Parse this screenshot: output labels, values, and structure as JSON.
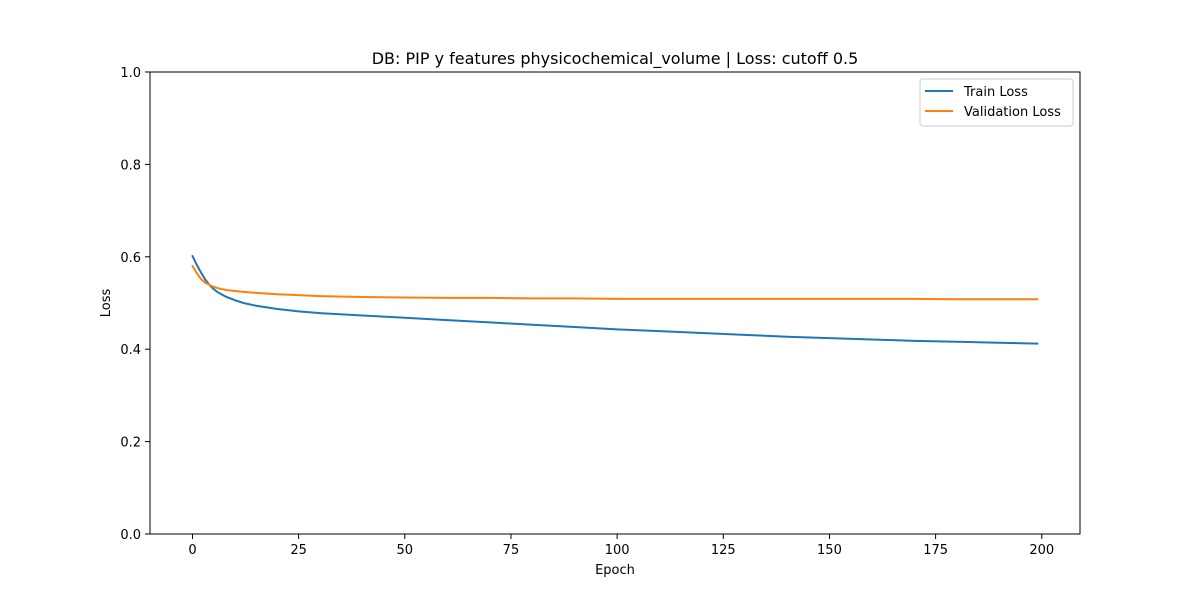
{
  "chart_data": {
    "type": "line",
    "title": "DB: PIP y features physicochemical_volume | Loss: cutoff 0.5",
    "xlabel": "Epoch",
    "ylabel": "Loss",
    "xlim": [
      -10,
      209
    ],
    "ylim": [
      0.0,
      1.0
    ],
    "x_ticks": [
      0,
      25,
      50,
      75,
      100,
      125,
      150,
      175,
      200
    ],
    "y_ticks": [
      0.0,
      0.2,
      0.4,
      0.6,
      0.8,
      1.0
    ],
    "x_tick_labels": [
      "0",
      "25",
      "50",
      "75",
      "100",
      "125",
      "150",
      "175",
      "200"
    ],
    "y_tick_labels": [
      "0.0",
      "0.2",
      "0.4",
      "0.6",
      "0.8",
      "1.0"
    ],
    "grid": false,
    "legend_position": "top-right",
    "x": [
      0,
      1,
      2,
      3,
      4,
      5,
      6,
      8,
      10,
      12,
      15,
      20,
      25,
      30,
      40,
      50,
      60,
      70,
      80,
      90,
      100,
      110,
      120,
      130,
      140,
      150,
      160,
      170,
      180,
      190,
      199
    ],
    "series": [
      {
        "name": "Train Loss",
        "color": "#1f77b4",
        "values": [
          0.602,
          0.583,
          0.566,
          0.551,
          0.539,
          0.53,
          0.523,
          0.513,
          0.506,
          0.5,
          0.494,
          0.487,
          0.482,
          0.478,
          0.473,
          0.468,
          0.463,
          0.458,
          0.453,
          0.448,
          0.443,
          0.439,
          0.435,
          0.431,
          0.427,
          0.424,
          0.421,
          0.418,
          0.416,
          0.414,
          0.412
        ]
      },
      {
        "name": "Validation Loss",
        "color": "#ff7f0e",
        "values": [
          0.58,
          0.565,
          0.552,
          0.544,
          0.539,
          0.535,
          0.532,
          0.528,
          0.526,
          0.524,
          0.522,
          0.519,
          0.517,
          0.515,
          0.513,
          0.512,
          0.511,
          0.511,
          0.51,
          0.51,
          0.509,
          0.509,
          0.509,
          0.509,
          0.509,
          0.509,
          0.509,
          0.509,
          0.508,
          0.508,
          0.508
        ]
      }
    ]
  }
}
